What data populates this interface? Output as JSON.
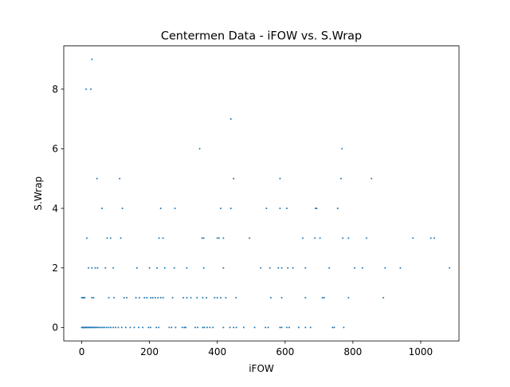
{
  "chart_data": {
    "type": "scatter",
    "title": "Centermen Data - iFOW vs. S.Wrap",
    "xlabel": "iFOW",
    "ylabel": "S.Wrap",
    "xlim": [
      -53,
      1113
    ],
    "ylim": [
      -0.45,
      9.45
    ],
    "xticks": [
      0,
      200,
      400,
      600,
      800,
      1000
    ],
    "yticks": [
      0,
      2,
      4,
      6,
      8
    ],
    "grid": false,
    "legend": "none",
    "marker_color": "#1f77b4",
    "points": [
      [
        0,
        0
      ],
      [
        2,
        0
      ],
      [
        4,
        0
      ],
      [
        5,
        0
      ],
      [
        7,
        0
      ],
      [
        9,
        0
      ],
      [
        11,
        0
      ],
      [
        13,
        0
      ],
      [
        15,
        0
      ],
      [
        18,
        0
      ],
      [
        21,
        0
      ],
      [
        24,
        0
      ],
      [
        27,
        0
      ],
      [
        30,
        0
      ],
      [
        33,
        0
      ],
      [
        36,
        0
      ],
      [
        40,
        0
      ],
      [
        44,
        0
      ],
      [
        48,
        0
      ],
      [
        53,
        0
      ],
      [
        58,
        0
      ],
      [
        63,
        0
      ],
      [
        68,
        0
      ],
      [
        74,
        0
      ],
      [
        80,
        0
      ],
      [
        86,
        0
      ],
      [
        93,
        0
      ],
      [
        100,
        0
      ],
      [
        108,
        0
      ],
      [
        118,
        0
      ],
      [
        130,
        0
      ],
      [
        143,
        0
      ],
      [
        155,
        0
      ],
      [
        168,
        0
      ],
      [
        180,
        0
      ],
      [
        197,
        0
      ],
      [
        203,
        0
      ],
      [
        220,
        0
      ],
      [
        227,
        0
      ],
      [
        258,
        0
      ],
      [
        265,
        0
      ],
      [
        277,
        0
      ],
      [
        297,
        0
      ],
      [
        303,
        0
      ],
      [
        307,
        0
      ],
      [
        335,
        0
      ],
      [
        342,
        0
      ],
      [
        357,
        0
      ],
      [
        362,
        0
      ],
      [
        370,
        0
      ],
      [
        378,
        0
      ],
      [
        387,
        0
      ],
      [
        418,
        0
      ],
      [
        437,
        0
      ],
      [
        448,
        0
      ],
      [
        456,
        0
      ],
      [
        478,
        0
      ],
      [
        510,
        0
      ],
      [
        542,
        0
      ],
      [
        550,
        0
      ],
      [
        585,
        0
      ],
      [
        590,
        0
      ],
      [
        605,
        0
      ],
      [
        612,
        0
      ],
      [
        640,
        0
      ],
      [
        660,
        0
      ],
      [
        675,
        0
      ],
      [
        740,
        0
      ],
      [
        745,
        0
      ],
      [
        773,
        0
      ],
      [
        0,
        1
      ],
      [
        3,
        1
      ],
      [
        6,
        1
      ],
      [
        9,
        1
      ],
      [
        30,
        1
      ],
      [
        35,
        1
      ],
      [
        80,
        1
      ],
      [
        95,
        1
      ],
      [
        125,
        1
      ],
      [
        133,
        1
      ],
      [
        160,
        1
      ],
      [
        170,
        1
      ],
      [
        185,
        1
      ],
      [
        192,
        1
      ],
      [
        204,
        1
      ],
      [
        210,
        1
      ],
      [
        217,
        1
      ],
      [
        225,
        1
      ],
      [
        233,
        1
      ],
      [
        240,
        1
      ],
      [
        268,
        1
      ],
      [
        300,
        1
      ],
      [
        310,
        1
      ],
      [
        322,
        1
      ],
      [
        340,
        1
      ],
      [
        357,
        1
      ],
      [
        368,
        1
      ],
      [
        392,
        1
      ],
      [
        400,
        1
      ],
      [
        410,
        1
      ],
      [
        425,
        1
      ],
      [
        455,
        1
      ],
      [
        558,
        1
      ],
      [
        590,
        1
      ],
      [
        660,
        1
      ],
      [
        710,
        1
      ],
      [
        715,
        1
      ],
      [
        787,
        1
      ],
      [
        890,
        1
      ],
      [
        20,
        2
      ],
      [
        30,
        2
      ],
      [
        40,
        2
      ],
      [
        47,
        2
      ],
      [
        70,
        2
      ],
      [
        93,
        2
      ],
      [
        163,
        2
      ],
      [
        200,
        2
      ],
      [
        222,
        2
      ],
      [
        245,
        2
      ],
      [
        273,
        2
      ],
      [
        310,
        2
      ],
      [
        360,
        2
      ],
      [
        418,
        2
      ],
      [
        528,
        2
      ],
      [
        555,
        2
      ],
      [
        580,
        2
      ],
      [
        590,
        2
      ],
      [
        608,
        2
      ],
      [
        623,
        2
      ],
      [
        660,
        2
      ],
      [
        730,
        2
      ],
      [
        805,
        2
      ],
      [
        828,
        2
      ],
      [
        895,
        2
      ],
      [
        940,
        2
      ],
      [
        1085,
        2
      ],
      [
        15,
        3
      ],
      [
        75,
        3
      ],
      [
        85,
        3
      ],
      [
        115,
        3
      ],
      [
        228,
        3
      ],
      [
        240,
        3
      ],
      [
        355,
        3
      ],
      [
        360,
        3
      ],
      [
        400,
        3
      ],
      [
        405,
        3
      ],
      [
        418,
        3
      ],
      [
        495,
        3
      ],
      [
        652,
        3
      ],
      [
        688,
        3
      ],
      [
        703,
        3
      ],
      [
        770,
        3
      ],
      [
        787,
        3
      ],
      [
        840,
        3
      ],
      [
        977,
        3
      ],
      [
        1030,
        3
      ],
      [
        1040,
        3
      ],
      [
        60,
        4
      ],
      [
        120,
        4
      ],
      [
        233,
        4
      ],
      [
        275,
        4
      ],
      [
        410,
        4
      ],
      [
        440,
        4
      ],
      [
        545,
        4
      ],
      [
        585,
        4
      ],
      [
        605,
        4
      ],
      [
        690,
        4
      ],
      [
        693,
        4
      ],
      [
        755,
        4
      ],
      [
        45,
        5
      ],
      [
        112,
        5
      ],
      [
        448,
        5
      ],
      [
        585,
        5
      ],
      [
        765,
        5
      ],
      [
        855,
        5
      ],
      [
        348,
        6
      ],
      [
        768,
        6
      ],
      [
        440,
        7
      ],
      [
        13,
        8
      ],
      [
        27,
        8
      ],
      [
        30,
        9
      ]
    ]
  }
}
